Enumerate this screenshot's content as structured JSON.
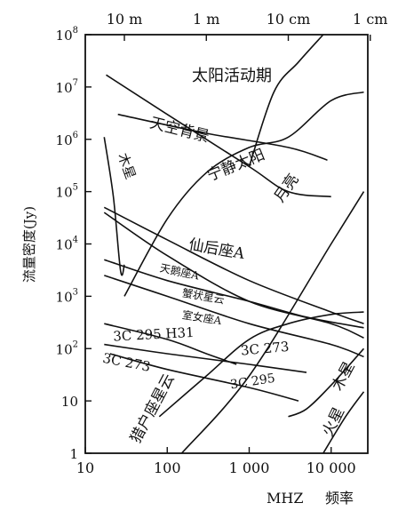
{
  "chart_data": {
    "type": "line",
    "xlabel_unit": "MHZ",
    "xlabel": "频率",
    "ylabel": "流量密度(Jy)",
    "x_scale": "log",
    "y_scale": "log",
    "xlim": [
      10,
      28000
    ],
    "ylim": [
      1,
      100000000
    ],
    "x_ticks": [
      {
        "value": 10,
        "label": "10"
      },
      {
        "value": 100,
        "label": "100"
      },
      {
        "value": 1000,
        "label": "1 000"
      },
      {
        "value": 10000,
        "label": "10 000"
      }
    ],
    "y_ticks": [
      {
        "value": 1,
        "base": "1",
        "exp": ""
      },
      {
        "value": 10,
        "base": "10",
        "exp": ""
      },
      {
        "value": 100,
        "base": "10",
        "exp": "2"
      },
      {
        "value": 1000,
        "base": "10",
        "exp": "3"
      },
      {
        "value": 10000,
        "base": "10",
        "exp": "4"
      },
      {
        "value": 100000,
        "base": "10",
        "exp": "5"
      },
      {
        "value": 1000000,
        "base": "10",
        "exp": "6"
      },
      {
        "value": 10000000,
        "base": "10",
        "exp": "7"
      },
      {
        "value": 100000000,
        "base": "10",
        "exp": "8"
      }
    ],
    "top_ticks": [
      {
        "freq": 30,
        "label": "10 m"
      },
      {
        "freq": 300,
        "label": "1 m"
      },
      {
        "freq": 3000,
        "label": "10 cm"
      },
      {
        "freq": 30000,
        "label": "1 cm"
      }
    ],
    "grid": false,
    "series": [
      {
        "name": "太阳活动期",
        "points": [
          [
            18,
            17000000
          ],
          [
            100,
            3000000
          ],
          [
            1000,
            300000
          ],
          [
            3000,
            100000
          ],
          [
            10000,
            80000
          ]
        ]
      },
      {
        "name": "太阳活动期",
        "points": [
          [
            1000,
            300000
          ],
          [
            2000,
            8000000
          ],
          [
            4000,
            30000000
          ],
          [
            8000,
            100000000
          ]
        ]
      },
      {
        "name": "天空背景",
        "points": [
          [
            25,
            3000000
          ],
          [
            300,
            1300000
          ],
          [
            3000,
            700000
          ],
          [
            9000,
            400000
          ]
        ]
      },
      {
        "name": "宁静太阳",
        "points": [
          [
            30,
            1000
          ],
          [
            100,
            30000
          ],
          [
            300,
            230000
          ],
          [
            1000,
            700000
          ],
          [
            3000,
            1100000
          ],
          [
            10000,
            5500000
          ],
          [
            25000,
            8000000
          ]
        ]
      },
      {
        "name": "木星",
        "points": [
          [
            17,
            1100000
          ],
          [
            22,
            80000
          ],
          [
            27,
            3000
          ],
          [
            30,
            4000
          ]
        ]
      },
      {
        "name": "仙后座A",
        "points": [
          [
            17,
            50000
          ],
          [
            100,
            12000
          ],
          [
            1000,
            2000
          ],
          [
            10000,
            500
          ],
          [
            25000,
            300
          ]
        ]
      },
      {
        "name": "天鹅座A",
        "points": [
          [
            17,
            40000
          ],
          [
            100,
            6000
          ],
          [
            1000,
            800
          ],
          [
            10000,
            300
          ],
          [
            25000,
            160
          ]
        ]
      },
      {
        "name": "蟹状星云",
        "points": [
          [
            17,
            5000
          ],
          [
            100,
            2000
          ],
          [
            1000,
            800
          ],
          [
            5000,
            400
          ],
          [
            25000,
            250
          ]
        ]
      },
      {
        "name": "室女座A",
        "points": [
          [
            17,
            2500
          ],
          [
            100,
            1000
          ],
          [
            1000,
            300
          ],
          [
            10000,
            120
          ],
          [
            25000,
            70
          ]
        ]
      },
      {
        "name": "3C 295 H31",
        "points": [
          [
            17,
            300
          ],
          [
            100,
            150
          ],
          [
            300,
            80
          ],
          [
            700,
            50
          ]
        ]
      },
      {
        "name": "3C 273",
        "points": [
          [
            17,
            120
          ],
          [
            100,
            80
          ],
          [
            1000,
            50
          ],
          [
            5000,
            35
          ]
        ]
      },
      {
        "name": "3C 295",
        "points": [
          [
            20,
            80
          ],
          [
            100,
            40
          ],
          [
            1000,
            18
          ],
          [
            4000,
            10
          ]
        ]
      },
      {
        "name": "猎户座星云",
        "points": [
          [
            80,
            5
          ],
          [
            300,
            30
          ],
          [
            1000,
            150
          ],
          [
            3000,
            300
          ],
          [
            10000,
            450
          ],
          [
            25000,
            500
          ]
        ]
      },
      {
        "name": "月亮",
        "points": [
          [
            150,
            1
          ],
          [
            1000,
            30
          ],
          [
            10000,
            10000
          ],
          [
            25000,
            100000
          ]
        ]
      },
      {
        "name": "木星",
        "points": [
          [
            3000,
            5
          ],
          [
            5000,
            7
          ],
          [
            10000,
            20
          ],
          [
            25000,
            100
          ]
        ]
      },
      {
        "name": "火星",
        "points": [
          [
            8000,
            1
          ],
          [
            15000,
            5
          ],
          [
            25000,
            15
          ]
        ]
      }
    ],
    "annotations": [
      {
        "text": "太阳活动期",
        "x": 200,
        "y": 13000000,
        "anchor": "start",
        "size": 18,
        "rotate": 0
      },
      {
        "text": "天空背景",
        "x": 60,
        "y": 1700000,
        "anchor": "start",
        "size": 17,
        "rotate": 14
      },
      {
        "text": "木星",
        "x": 25,
        "y": 500000,
        "anchor": "start",
        "size": 15,
        "rotate": 70
      },
      {
        "text": "宁静太阳",
        "x": 330,
        "y": 160000,
        "anchor": "start",
        "size": 17,
        "rotate": -22
      },
      {
        "text": "仙后座A",
        "x": 180,
        "y": 8000,
        "anchor": "start",
        "size": 17,
        "rotate": 10
      },
      {
        "text": "月亮",
        "x": 2500,
        "y": 60000,
        "anchor": "start",
        "size": 17,
        "rotate": -55
      },
      {
        "text": "天鹅座A",
        "x": 80,
        "y": 3000,
        "anchor": "start",
        "size": 12,
        "rotate": 12
      },
      {
        "text": "蟹状星云",
        "x": 150,
        "y": 1000,
        "anchor": "start",
        "size": 12,
        "rotate": 10
      },
      {
        "text": "室女座A",
        "x": 150,
        "y": 380,
        "anchor": "start",
        "size": 12,
        "rotate": 9
      },
      {
        "text": "3C 295 H31",
        "x": 22,
        "y": 140,
        "anchor": "start",
        "size": 15,
        "rotate": -3
      },
      {
        "text": "3C 273",
        "x": 16,
        "y": 55,
        "anchor": "start",
        "size": 15,
        "rotate": 11
      },
      {
        "text": "3C 273",
        "x": 800,
        "y": 75,
        "anchor": "start",
        "size": 15,
        "rotate": -5
      },
      {
        "text": "3C 295",
        "x": 600,
        "y": 17,
        "anchor": "start",
        "size": 14,
        "rotate": -9
      },
      {
        "text": "猎户座星云",
        "x": 45,
        "y": 1.5,
        "anchor": "start",
        "size": 17,
        "rotate": -62
      },
      {
        "text": "木星",
        "x": 13000,
        "y": 15,
        "anchor": "start",
        "size": 17,
        "rotate": -62
      },
      {
        "text": "火星",
        "x": 10000,
        "y": 2,
        "anchor": "start",
        "size": 17,
        "rotate": -64
      }
    ]
  }
}
